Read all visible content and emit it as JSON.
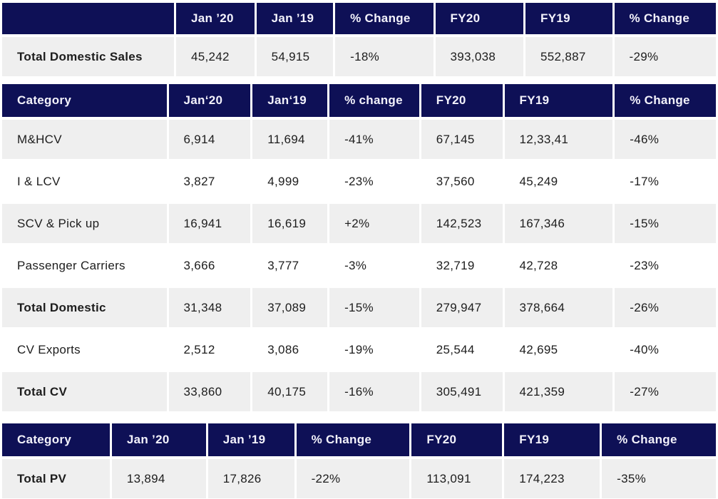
{
  "colors": {
    "header_background": "#0E1056",
    "header_text": "#F3F2FB",
    "shaded_row_background": "#EFEFEF",
    "plain_row_background": "#FFFFFF",
    "cell_text": "#1D1D1D"
  },
  "chart_data": [
    {
      "type": "table",
      "name": "total-domestic-sales-summary-table",
      "columns": [
        "",
        "Jan ’20",
        "Jan ’19",
        "% Change",
        "FY20",
        "FY19",
        "% Change"
      ],
      "col_widths": [
        "24.2%",
        "11.0%",
        "10.8%",
        "13.8%",
        "12.4%",
        "12.2%",
        "14.3%"
      ],
      "rows": [
        {
          "cells": [
            "Total Domestic Sales",
            "45,242",
            "54,915",
            "-18%",
            "393,038",
            "552,887",
            "-29%"
          ],
          "shaded": true,
          "bold_label": true
        }
      ]
    },
    {
      "type": "table",
      "name": "cv-category-table",
      "columns": [
        "Category",
        "Jan‘20",
        "Jan‘19",
        "% change",
        "FY20",
        "FY19",
        "% Change"
      ],
      "col_widths": [
        "23.1%",
        "11.5%",
        "10.5%",
        "12.6%",
        "11.4%",
        "15.2%",
        "14.2%"
      ],
      "rows": [
        {
          "cells": [
            "M&HCV",
            "6,914",
            "11,694",
            "-41%",
            "67,145",
            "12,33,41",
            "-46%"
          ],
          "shaded": true,
          "bold_label": false
        },
        {
          "cells": [
            "I & LCV",
            "3,827",
            "4,999",
            "-23%",
            "37,560",
            "45,249",
            "-17%"
          ],
          "shaded": false,
          "bold_label": false
        },
        {
          "cells": [
            "SCV & Pick up",
            "16,941",
            "16,619",
            "+2%",
            "142,523",
            "167,346",
            "-15%"
          ],
          "shaded": true,
          "bold_label": false
        },
        {
          "cells": [
            "Passenger Carriers",
            "3,666",
            "3,777",
            "-3%",
            "32,719",
            "42,728",
            "-23%"
          ],
          "shaded": false,
          "bold_label": false
        },
        {
          "cells": [
            "Total Domestic",
            "31,348",
            "37,089",
            "-15%",
            "279,947",
            "378,664",
            "-26%"
          ],
          "shaded": true,
          "bold_label": true
        },
        {
          "cells": [
            "CV Exports",
            "2,512",
            "3,086",
            "-19%",
            "25,544",
            "42,695",
            "-40%"
          ],
          "shaded": false,
          "bold_label": false
        },
        {
          "cells": [
            "Total CV",
            "33,860",
            "40,175",
            "-16%",
            "305,491",
            "421,359",
            "-27%"
          ],
          "shaded": true,
          "bold_label": true
        }
      ]
    },
    {
      "type": "table",
      "name": "pv-category-table",
      "columns": [
        "Category",
        "Jan ’20",
        "Jan ’19",
        "% Change",
        "FY20",
        "FY19",
        "% Change"
      ],
      "col_widths": [
        "15.1%",
        "13.2%",
        "12.1%",
        "15.9%",
        "12.7%",
        "13.4%",
        "16.0%"
      ],
      "rows": [
        {
          "cells": [
            "Total PV",
            "13,894",
            "17,826",
            "-22%",
            "113,091",
            "174,223",
            "-35%"
          ],
          "shaded": true,
          "bold_label": true
        }
      ]
    }
  ]
}
